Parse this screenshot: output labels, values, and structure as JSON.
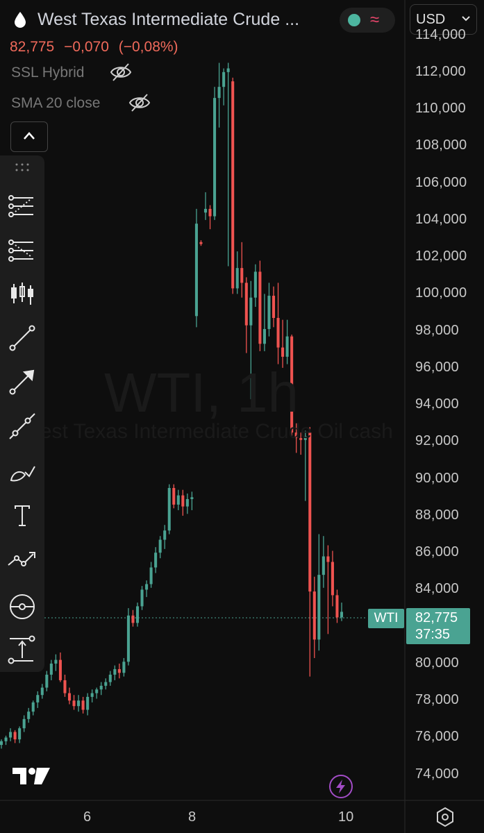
{
  "header": {
    "symbol_title": "West Texas Intermediate Crude ...",
    "currency": "USD",
    "last_price": "82,775",
    "change": "−0,070",
    "change_pct": "(−0,08%)"
  },
  "indicators": [
    {
      "name": "SSL Hybrid",
      "visible": false
    },
    {
      "name": "SMA 20 close",
      "visible": false
    }
  ],
  "watermark": {
    "line1": "WTI, 1h",
    "line2": "West Texas Intermediate Crude Oil cash"
  },
  "toolbar": {
    "tools": [
      "fib-retracement-icon",
      "fib-extension-icon",
      "long-short-position-icon",
      "trend-line-icon",
      "arrow-icon",
      "ray-icon",
      "brush-icon",
      "text-icon",
      "path-icon",
      "projection-icon",
      "price-range-icon"
    ]
  },
  "price_marker": {
    "label": "WTI",
    "price": "82,775",
    "countdown": "37:35"
  },
  "colors": {
    "up": "#4aa392",
    "down": "#ef5350",
    "background": "#0e0e0e"
  },
  "chart_data": {
    "type": "candlestick",
    "y_ticks": [
      "114,000",
      "112,000",
      "110,000",
      "108,000",
      "106,000",
      "104,000",
      "102,000",
      "100,000",
      "98,000",
      "96,000",
      "94,000",
      "92,000",
      "90,000",
      "88,000",
      "86,000",
      "84,000",
      "82,000",
      "80,000",
      "78,000",
      "76,000",
      "74,000"
    ],
    "ylim": [
      72.6,
      115.9
    ],
    "x_ticks": [
      "6",
      "8",
      "10"
    ],
    "last_price": 82.775,
    "candles": [
      [
        75.6,
        75.9,
        75.4,
        75.8
      ],
      [
        75.8,
        76.1,
        75.6,
        76.0
      ],
      [
        76.0,
        76.5,
        75.8,
        76.3
      ],
      [
        76.3,
        76.4,
        75.7,
        75.9
      ],
      [
        75.9,
        76.6,
        75.7,
        76.5
      ],
      [
        76.5,
        77.2,
        76.3,
        77.0
      ],
      [
        77.0,
        77.6,
        76.8,
        77.4
      ],
      [
        77.4,
        78.0,
        77.2,
        77.9
      ],
      [
        77.9,
        78.5,
        77.6,
        78.3
      ],
      [
        78.3,
        78.9,
        78.1,
        78.7
      ],
      [
        78.7,
        79.6,
        78.5,
        79.4
      ],
      [
        79.4,
        80.2,
        79.1,
        80.0
      ],
      [
        80.0,
        80.5,
        79.6,
        80.2
      ],
      [
        80.2,
        80.6,
        79.0,
        79.1
      ],
      [
        79.1,
        79.4,
        78.2,
        78.4
      ],
      [
        78.4,
        78.7,
        77.8,
        78.0
      ],
      [
        78.0,
        78.3,
        77.5,
        77.7
      ],
      [
        77.7,
        78.3,
        77.4,
        78.0
      ],
      [
        78.0,
        78.2,
        77.3,
        77.5
      ],
      [
        77.5,
        78.4,
        77.2,
        78.2
      ],
      [
        78.2,
        78.6,
        77.9,
        78.4
      ],
      [
        78.4,
        78.7,
        78.1,
        78.6
      ],
      [
        78.6,
        79.0,
        78.3,
        78.8
      ],
      [
        78.8,
        79.2,
        78.6,
        79.0
      ],
      [
        79.0,
        79.6,
        78.8,
        79.4
      ],
      [
        79.4,
        79.9,
        79.1,
        79.7
      ],
      [
        79.7,
        80.0,
        79.2,
        79.5
      ],
      [
        79.5,
        80.3,
        79.3,
        80.1
      ],
      [
        80.1,
        83.0,
        79.9,
        82.6
      ],
      [
        82.6,
        82.9,
        82.0,
        82.2
      ],
      [
        82.2,
        83.3,
        82.0,
        83.1
      ],
      [
        83.1,
        84.2,
        82.9,
        84.0
      ],
      [
        84.0,
        84.5,
        83.6,
        84.3
      ],
      [
        84.3,
        85.5,
        84.1,
        85.2
      ],
      [
        85.2,
        86.3,
        84.9,
        86.0
      ],
      [
        86.0,
        86.9,
        85.7,
        86.7
      ],
      [
        86.7,
        87.5,
        86.2,
        87.2
      ],
      [
        87.2,
        89.7,
        87.0,
        89.5
      ],
      [
        89.5,
        89.7,
        88.4,
        88.6
      ],
      [
        88.6,
        89.4,
        88.3,
        89.1
      ],
      [
        89.1,
        89.4,
        88.0,
        88.5
      ],
      [
        88.5,
        89.2,
        88.1,
        88.9
      ],
      [
        88.9,
        89.3,
        88.3,
        89.0
      ],
      [
        98.8,
        104.6,
        98.2,
        103.8
      ],
      [
        102.8,
        102.9,
        102.6,
        102.7
      ],
      [
        104.4,
        105.5,
        104.0,
        104.6
      ],
      [
        104.6,
        104.8,
        103.5,
        104.2
      ],
      [
        104.2,
        111.2,
        104.0,
        110.6
      ],
      [
        110.6,
        112.5,
        109.0,
        111.2
      ],
      [
        111.2,
        112.2,
        110.2,
        112.0
      ],
      [
        112.0,
        112.5,
        101.5,
        112.2
      ],
      [
        111.5,
        111.7,
        100.0,
        100.3
      ],
      [
        100.3,
        102.3,
        100.0,
        101.4
      ],
      [
        101.4,
        102.8,
        99.8,
        100.6
      ],
      [
        100.6,
        100.9,
        96.8,
        98.3
      ],
      [
        98.3,
        100.7,
        94.3,
        99.8
      ],
      [
        99.8,
        101.6,
        99.3,
        101.2
      ],
      [
        101.2,
        101.8,
        96.9,
        97.3
      ],
      [
        97.3,
        100.0,
        96.9,
        98.1
      ],
      [
        98.1,
        100.6,
        97.7,
        99.9
      ],
      [
        99.9,
        100.4,
        98.2,
        98.7
      ],
      [
        98.7,
        100.6,
        96.2,
        97.1
      ],
      [
        97.1,
        98.6,
        96.0,
        96.6
      ],
      [
        96.6,
        98.6,
        96.2,
        97.7
      ],
      [
        97.7,
        97.8,
        92.3,
        92.5
      ],
      [
        92.5,
        93.0,
        91.4,
        92.2
      ],
      [
        92.2,
        92.5,
        91.3,
        92.1
      ],
      [
        92.1,
        92.6,
        88.8,
        92.3
      ],
      [
        92.5,
        92.8,
        79.3,
        83.9
      ],
      [
        83.9,
        84.7,
        80.3,
        81.3
      ],
      [
        81.3,
        87.0,
        80.7,
        84.8
      ],
      [
        84.8,
        86.9,
        84.1,
        85.8
      ],
      [
        85.8,
        86.4,
        81.6,
        85.5
      ],
      [
        85.5,
        86.1,
        83.1,
        83.7
      ],
      [
        83.7,
        84.0,
        82.2,
        82.5
      ],
      [
        82.5,
        83.3,
        82.3,
        82.8
      ]
    ]
  }
}
